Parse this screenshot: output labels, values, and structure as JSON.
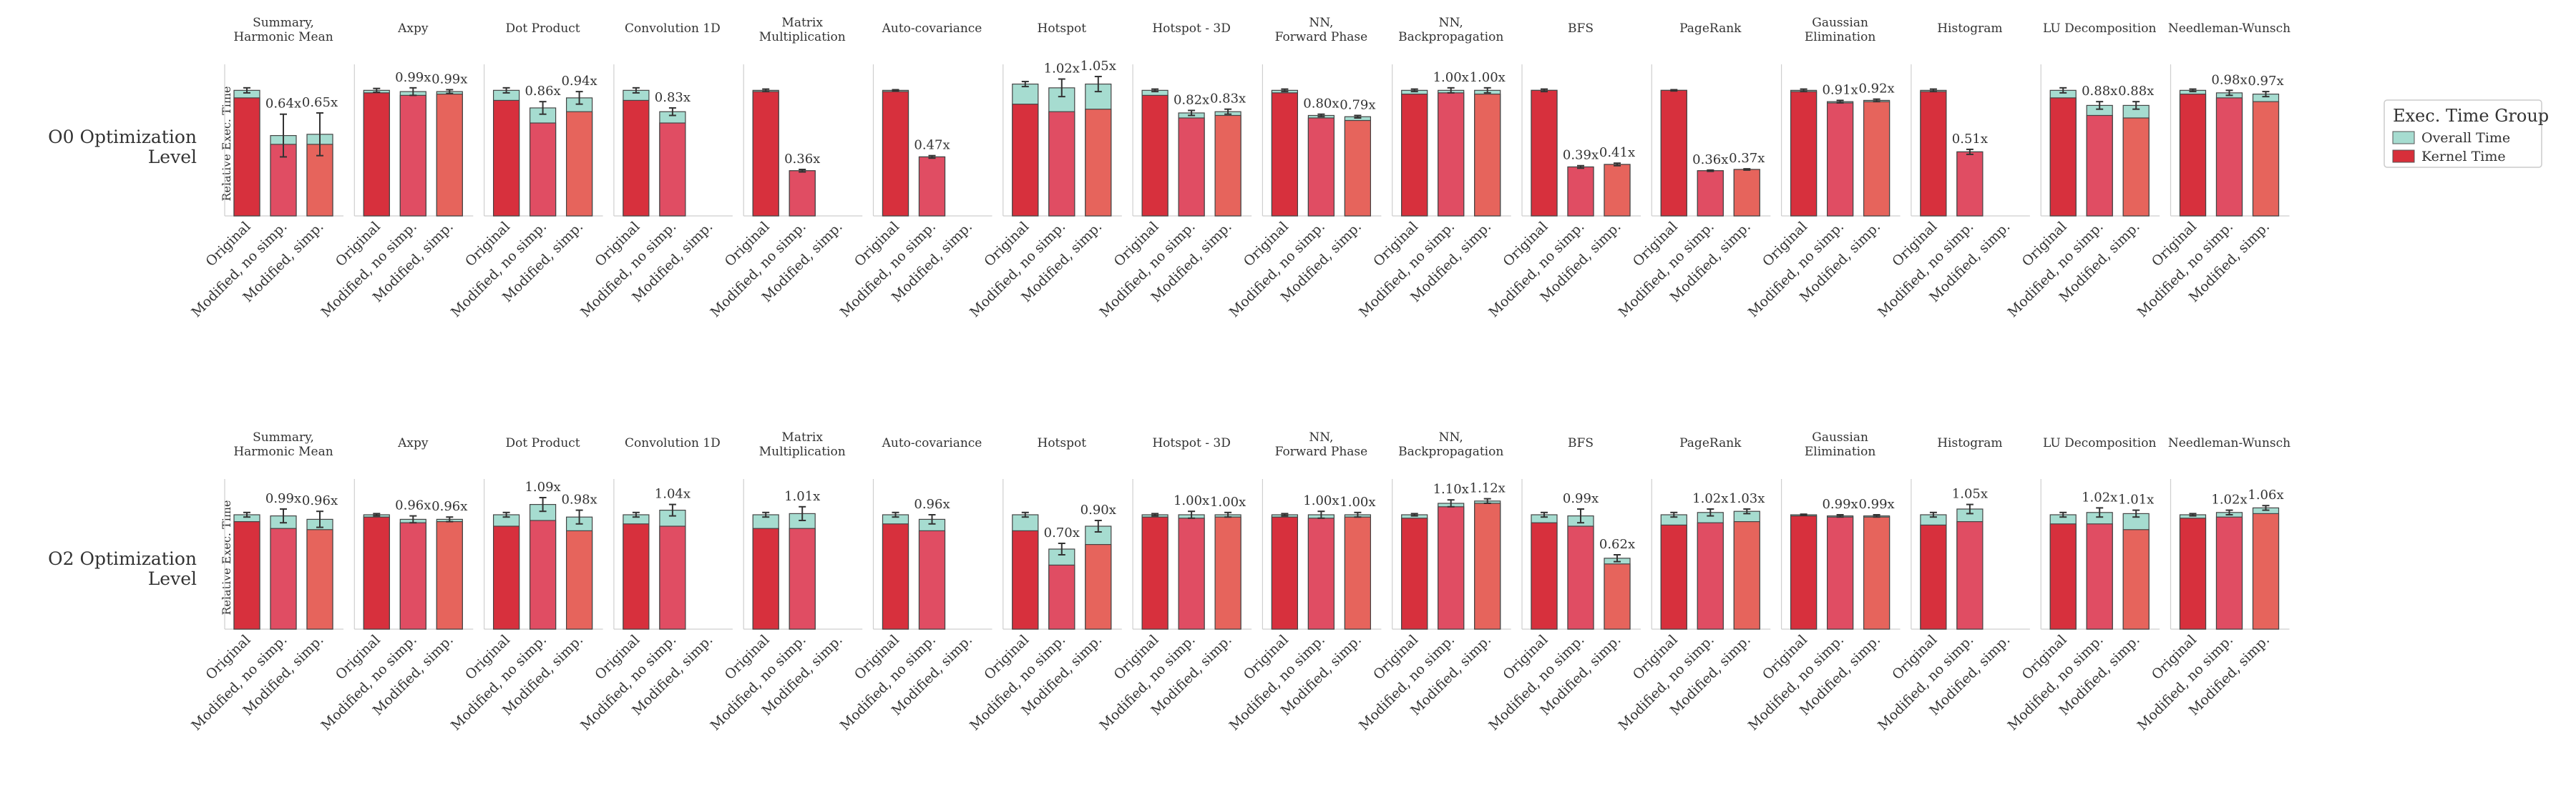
{
  "chart_data": {
    "type": "bar",
    "ylabel": "Relative Exec. Time",
    "legend": {
      "title": "Exec. Time Group",
      "placement": "right",
      "entries": [
        {
          "name": "Overall Time",
          "color": "#a6dcd0"
        },
        {
          "name": "Kernel Time",
          "color": "#d72f3a"
        }
      ]
    },
    "colors": {
      "original_kernel": "#d7303d",
      "modified_kernel": "#e04d63",
      "simp_kernel": "#e6645c",
      "overall": "#a6dcd0",
      "edge": "#444444"
    },
    "categories": [
      "Original",
      "Modified, no simp.",
      "Modified, simp."
    ],
    "panels": [
      "Summary,\nHarmonic Mean",
      "Axpy",
      "Dot Product",
      "Convolution 1D",
      "Matrix\nMultiplication",
      "Auto-covariance",
      "Hotspot",
      "Hotspot - 3D",
      "NN,\nForward Phase",
      "NN,\nBackpropagation",
      "BFS",
      "PageRank",
      "Gaussian\nElimination",
      "Histogram",
      "LU Decomposition",
      "Needleman-Wunsch"
    ],
    "rows": [
      {
        "label": "O0 Optimization\nLevel",
        "ylim": [
          0,
          1.15
        ],
        "panels": [
          {
            "kernel": [
              0.94,
              0.57,
              0.57
            ],
            "overall": [
              1.0,
              0.64,
              0.65
            ],
            "err": [
              0.02,
              0.17,
              0.17
            ],
            "labels": [
              "",
              "0.64x",
              "0.65x"
            ]
          },
          {
            "kernel": [
              0.98,
              0.96,
              0.97
            ],
            "overall": [
              1.0,
              0.99,
              0.99
            ],
            "err": [
              0.015,
              0.03,
              0.015
            ],
            "labels": [
              "",
              "0.99x",
              "0.99x"
            ]
          },
          {
            "kernel": [
              0.92,
              0.74,
              0.83
            ],
            "overall": [
              1.0,
              0.86,
              0.94
            ],
            "err": [
              0.02,
              0.05,
              0.05
            ],
            "labels": [
              "",
              "0.86x",
              "0.94x"
            ]
          },
          {
            "kernel": [
              0.92,
              0.74,
              0.0
            ],
            "overall": [
              1.0,
              0.83,
              0.0
            ],
            "err": [
              0.02,
              0.03,
              0.0
            ],
            "labels": [
              "",
              "0.83x",
              ""
            ]
          },
          {
            "kernel": [
              0.99,
              0.36,
              0.0
            ],
            "overall": [
              1.0,
              0.36,
              0.0
            ],
            "err": [
              0.01,
              0.01,
              0.0
            ],
            "labels": [
              "",
              "0.36x",
              ""
            ]
          },
          {
            "kernel": [
              0.99,
              0.47,
              0.0
            ],
            "overall": [
              1.0,
              0.47,
              0.0
            ],
            "err": [
              0.005,
              0.01,
              0.0
            ],
            "labels": [
              "",
              "0.47x",
              ""
            ]
          },
          {
            "kernel": [
              0.89,
              0.83,
              0.85
            ],
            "overall": [
              1.05,
              1.02,
              1.05
            ],
            "err": [
              0.02,
              0.07,
              0.06
            ],
            "labels": [
              "",
              "1.02x",
              "1.05x"
            ]
          },
          {
            "kernel": [
              0.96,
              0.78,
              0.8
            ],
            "overall": [
              1.0,
              0.82,
              0.83
            ],
            "err": [
              0.01,
              0.02,
              0.02
            ],
            "labels": [
              "",
              "0.82x",
              "0.83x"
            ]
          },
          {
            "kernel": [
              0.98,
              0.78,
              0.76
            ],
            "overall": [
              1.0,
              0.8,
              0.79
            ],
            "err": [
              0.01,
              0.01,
              0.01
            ],
            "labels": [
              "",
              "0.80x",
              "0.79x"
            ]
          },
          {
            "kernel": [
              0.97,
              0.98,
              0.97
            ],
            "overall": [
              1.0,
              1.0,
              1.0
            ],
            "err": [
              0.01,
              0.02,
              0.02
            ],
            "labels": [
              "",
              "1.00x",
              "1.00x"
            ]
          },
          {
            "kernel": [
              1.0,
              0.39,
              0.41
            ],
            "overall": [
              1.0,
              0.39,
              0.41
            ],
            "err": [
              0.01,
              0.01,
              0.01
            ],
            "labels": [
              "",
              "0.39x",
              "0.41x"
            ]
          },
          {
            "kernel": [
              1.0,
              0.36,
              0.37
            ],
            "overall": [
              1.0,
              0.36,
              0.37
            ],
            "err": [
              0.005,
              0.005,
              0.005
            ],
            "labels": [
              "",
              "0.36x",
              "0.37x"
            ]
          },
          {
            "kernel": [
              0.99,
              0.9,
              0.91
            ],
            "overall": [
              1.0,
              0.91,
              0.92
            ],
            "err": [
              0.01,
              0.01,
              0.01
            ],
            "labels": [
              "",
              "0.91x",
              "0.92x"
            ]
          },
          {
            "kernel": [
              0.99,
              0.51,
              0.0
            ],
            "overall": [
              1.0,
              0.51,
              0.0
            ],
            "err": [
              0.01,
              0.02,
              0.0
            ],
            "labels": [
              "",
              "0.51x",
              ""
            ]
          },
          {
            "kernel": [
              0.94,
              0.8,
              0.78
            ],
            "overall": [
              1.0,
              0.88,
              0.88
            ],
            "err": [
              0.02,
              0.03,
              0.03
            ],
            "labels": [
              "",
              "0.88x",
              "0.88x"
            ]
          },
          {
            "kernel": [
              0.97,
              0.94,
              0.91
            ],
            "overall": [
              1.0,
              0.98,
              0.97
            ],
            "err": [
              0.01,
              0.02,
              0.02
            ],
            "labels": [
              "",
              "0.98x",
              "0.97x"
            ]
          }
        ]
      },
      {
        "label": "O2 Optimization\nLevel",
        "ylim": [
          0,
          1.25
        ],
        "panels": [
          {
            "kernel": [
              0.94,
              0.88,
              0.87
            ],
            "overall": [
              1.0,
              0.99,
              0.96
            ],
            "err": [
              0.02,
              0.06,
              0.07
            ],
            "labels": [
              "",
              "0.99x",
              "0.96x"
            ]
          },
          {
            "kernel": [
              0.98,
              0.93,
              0.94
            ],
            "overall": [
              1.0,
              0.96,
              0.96
            ],
            "err": [
              0.01,
              0.03,
              0.02
            ],
            "labels": [
              "",
              "0.96x",
              "0.96x"
            ]
          },
          {
            "kernel": [
              0.9,
              0.95,
              0.86
            ],
            "overall": [
              1.0,
              1.09,
              0.98
            ],
            "err": [
              0.02,
              0.06,
              0.06
            ],
            "labels": [
              "",
              "1.09x",
              "0.98x"
            ]
          },
          {
            "kernel": [
              0.92,
              0.9,
              0.0
            ],
            "overall": [
              1.0,
              1.04,
              0.0
            ],
            "err": [
              0.02,
              0.05,
              0.0
            ],
            "labels": [
              "",
              "1.04x",
              ""
            ]
          },
          {
            "kernel": [
              0.88,
              0.88,
              0.0
            ],
            "overall": [
              1.0,
              1.01,
              0.0
            ],
            "err": [
              0.02,
              0.06,
              0.0
            ],
            "labels": [
              "",
              "1.01x",
              ""
            ]
          },
          {
            "kernel": [
              0.92,
              0.86,
              0.0
            ],
            "overall": [
              1.0,
              0.96,
              0.0
            ],
            "err": [
              0.02,
              0.04,
              0.0
            ],
            "labels": [
              "",
              "0.96x",
              ""
            ]
          },
          {
            "kernel": [
              0.86,
              0.56,
              0.74
            ],
            "overall": [
              1.0,
              0.7,
              0.9
            ],
            "err": [
              0.02,
              0.05,
              0.05
            ],
            "labels": [
              "",
              "0.70x",
              "0.90x"
            ]
          },
          {
            "kernel": [
              0.98,
              0.97,
              0.98
            ],
            "overall": [
              1.0,
              1.0,
              1.0
            ],
            "err": [
              0.01,
              0.03,
              0.02
            ],
            "labels": [
              "",
              "1.00x",
              "1.00x"
            ]
          },
          {
            "kernel": [
              0.98,
              0.97,
              0.98
            ],
            "overall": [
              1.0,
              1.0,
              1.0
            ],
            "err": [
              0.01,
              0.03,
              0.02
            ],
            "labels": [
              "",
              "1.00x",
              "1.00x"
            ]
          },
          {
            "kernel": [
              0.97,
              1.07,
              1.1
            ],
            "overall": [
              1.0,
              1.1,
              1.12
            ],
            "err": [
              0.01,
              0.03,
              0.02
            ],
            "labels": [
              "",
              "1.10x",
              "1.12x"
            ]
          },
          {
            "kernel": [
              0.93,
              0.9,
              0.57
            ],
            "overall": [
              1.0,
              0.99,
              0.62
            ],
            "err": [
              0.02,
              0.06,
              0.03
            ],
            "labels": [
              "",
              "0.99x",
              "0.62x"
            ]
          },
          {
            "kernel": [
              0.91,
              0.93,
              0.94
            ],
            "overall": [
              1.0,
              1.02,
              1.03
            ],
            "err": [
              0.02,
              0.03,
              0.02
            ],
            "labels": [
              "",
              "1.02x",
              "1.03x"
            ]
          },
          {
            "kernel": [
              0.99,
              0.98,
              0.98
            ],
            "overall": [
              1.0,
              0.99,
              0.99
            ],
            "err": [
              0.005,
              0.01,
              0.01
            ],
            "labels": [
              "",
              "0.99x",
              "0.99x"
            ]
          },
          {
            "kernel": [
              0.91,
              0.94,
              0.0
            ],
            "overall": [
              1.0,
              1.05,
              0.0
            ],
            "err": [
              0.02,
              0.04,
              0.0
            ],
            "labels": [
              "",
              "1.05x",
              ""
            ]
          },
          {
            "kernel": [
              0.92,
              0.92,
              0.87
            ],
            "overall": [
              1.0,
              1.02,
              1.01
            ],
            "err": [
              0.02,
              0.04,
              0.03
            ],
            "labels": [
              "",
              "1.02x",
              "1.01x"
            ]
          },
          {
            "kernel": [
              0.97,
              0.98,
              1.01
            ],
            "overall": [
              1.0,
              1.02,
              1.06
            ],
            "err": [
              0.01,
              0.02,
              0.02
            ],
            "labels": [
              "",
              "1.02x",
              "1.06x"
            ]
          }
        ]
      }
    ]
  }
}
